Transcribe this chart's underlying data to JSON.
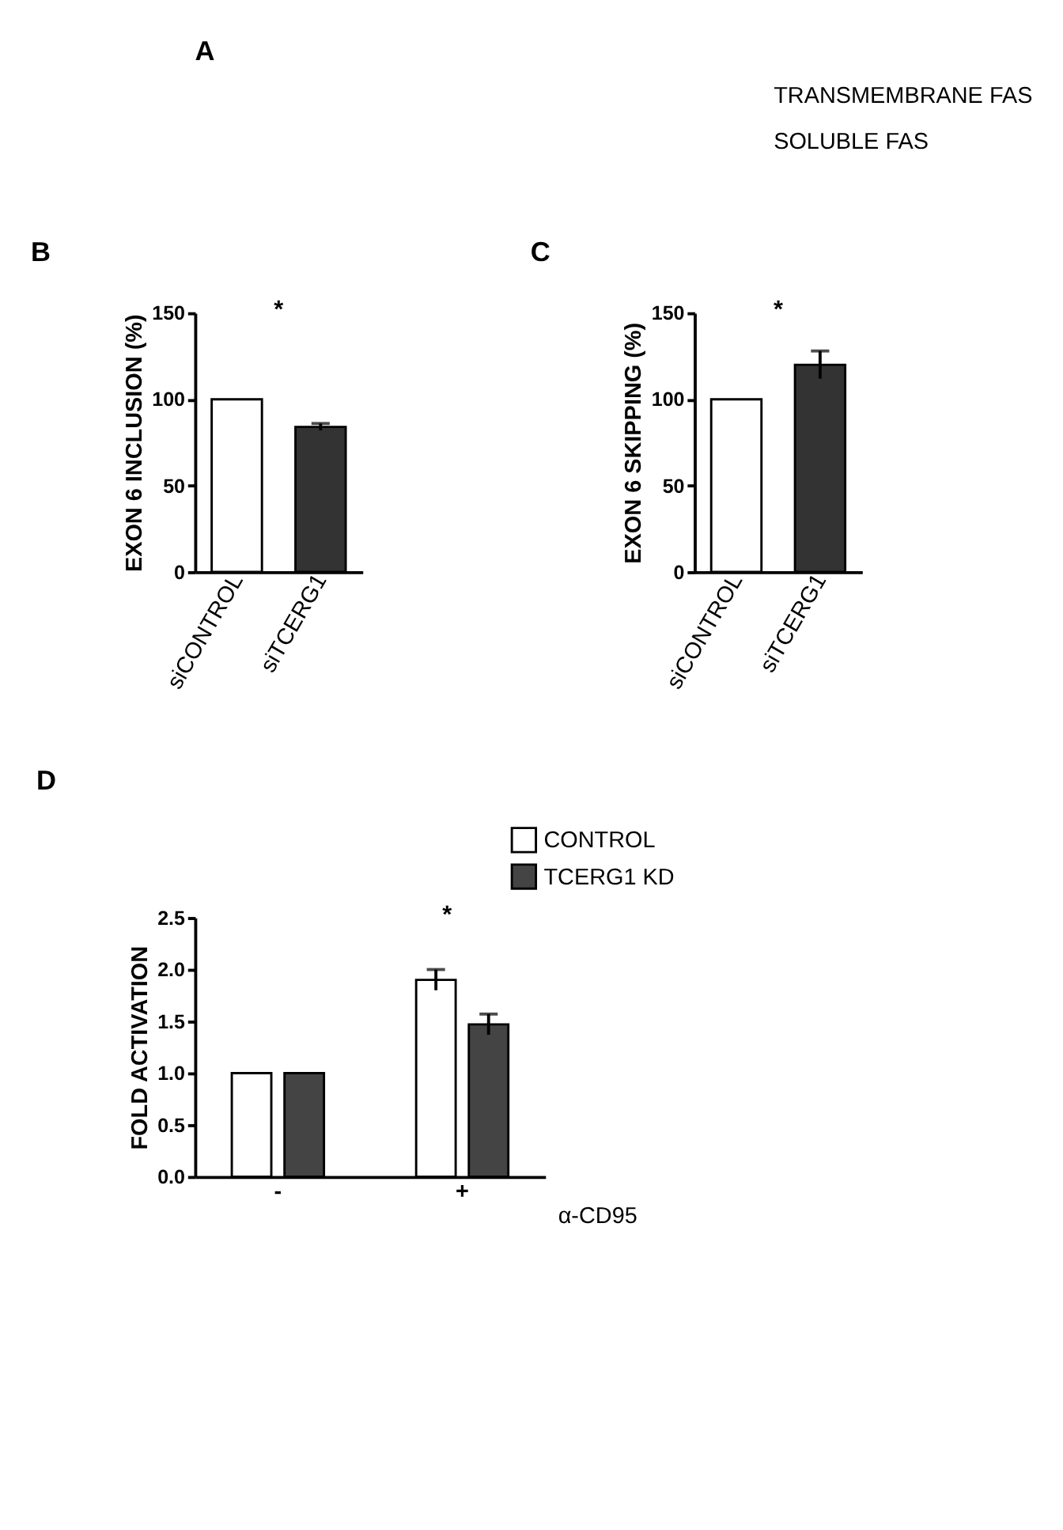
{
  "chart_data": [
    {
      "type": "other",
      "title": "A",
      "annotations": [
        "TRANSMEMBRANE FAS",
        "SOLUBLE FAS"
      ]
    },
    {
      "type": "bar",
      "title": "B",
      "ylabel": "EXON 6 INCLUSION (%)",
      "categories": [
        "siCONTROL",
        "siTCERG1"
      ],
      "values": [
        100,
        84
      ],
      "errors": [
        null,
        2
      ],
      "colors": [
        "#ffffff",
        "#333333"
      ],
      "ylim": [
        0,
        150
      ],
      "yticks": [
        0,
        50,
        100,
        150
      ],
      "grid": false,
      "annotations": [
        "*"
      ]
    },
    {
      "type": "bar",
      "title": "C",
      "ylabel": "EXON 6 SKIPPING (%)",
      "categories": [
        "siCONTROL",
        "siTCERG1"
      ],
      "values": [
        100,
        120
      ],
      "errors": [
        null,
        8
      ],
      "colors": [
        "#ffffff",
        "#333333"
      ],
      "ylim": [
        0,
        150
      ],
      "yticks": [
        0,
        50,
        100,
        150
      ],
      "grid": false,
      "annotations": [
        "*"
      ]
    },
    {
      "type": "bar",
      "title": "D",
      "ylabel": "FOLD ACTIVATION",
      "xlabel": "α-CD95",
      "categories": [
        "-",
        "+"
      ],
      "series": [
        {
          "name": "CONTROL",
          "color": "#ffffff",
          "values": [
            1.0,
            1.9
          ],
          "errors": [
            null,
            0.1
          ]
        },
        {
          "name": "TCERG1 KD",
          "color": "#444444",
          "values": [
            1.0,
            1.47
          ],
          "errors": [
            null,
            0.1
          ]
        }
      ],
      "ylim": [
        0,
        2.5
      ],
      "yticks": [
        {
          "value": 0,
          "label": "0.0"
        },
        {
          "value": 0.5,
          "label": "0.5"
        },
        {
          "value": 1,
          "label": "1.0"
        },
        {
          "value": 1.5,
          "label": "1.5"
        },
        {
          "value": 2,
          "label": "2.0"
        },
        {
          "value": 2.5,
          "label": "2.5"
        }
      ],
      "grid": false,
      "legend": "top right",
      "annotations": [
        "*"
      ]
    }
  ]
}
